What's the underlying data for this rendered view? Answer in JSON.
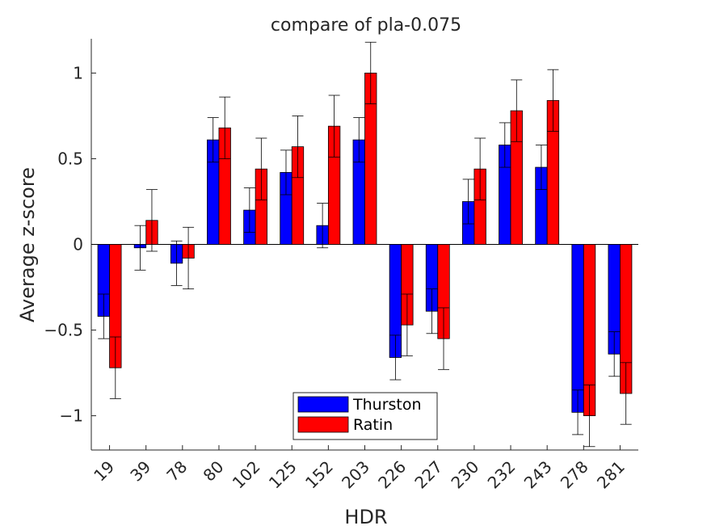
{
  "chart_data": {
    "type": "bar",
    "title": "compare of pla-0.075",
    "xlabel": "HDR",
    "ylabel": "Average z-score",
    "categories": [
      "19",
      "39",
      "78",
      "80",
      "102",
      "125",
      "152",
      "203",
      "226",
      "227",
      "230",
      "232",
      "243",
      "278",
      "281"
    ],
    "series": [
      {
        "name": "Thurston",
        "color": "#0000ff",
        "values": [
          -0.42,
          -0.02,
          -0.11,
          0.61,
          0.2,
          0.42,
          0.11,
          0.61,
          -0.66,
          -0.39,
          0.25,
          0.58,
          0.45,
          -0.98,
          -0.64
        ],
        "errors": [
          0.13,
          0.13,
          0.13,
          0.13,
          0.13,
          0.13,
          0.13,
          0.13,
          0.13,
          0.13,
          0.13,
          0.13,
          0.13,
          0.13,
          0.13
        ]
      },
      {
        "name": "Ratin",
        "color": "#ff0000",
        "values": [
          -0.72,
          0.14,
          -0.08,
          0.68,
          0.44,
          0.57,
          0.69,
          1.0,
          -0.47,
          -0.55,
          0.44,
          0.78,
          0.84,
          -1.0,
          -0.87
        ],
        "errors": [
          0.18,
          0.18,
          0.18,
          0.18,
          0.18,
          0.18,
          0.18,
          0.18,
          0.18,
          0.18,
          0.18,
          0.18,
          0.18,
          0.18,
          0.18
        ]
      }
    ],
    "ylim": [
      -1.2,
      1.2
    ],
    "yticks": [
      {
        "value": -1,
        "label": "−1"
      },
      {
        "value": -0.5,
        "label": "−0.5"
      },
      {
        "value": 0,
        "label": "0"
      },
      {
        "value": 0.5,
        "label": "0.5"
      },
      {
        "value": 1,
        "label": "1"
      }
    ],
    "grid": false,
    "legend_position": "bottom-center"
  }
}
